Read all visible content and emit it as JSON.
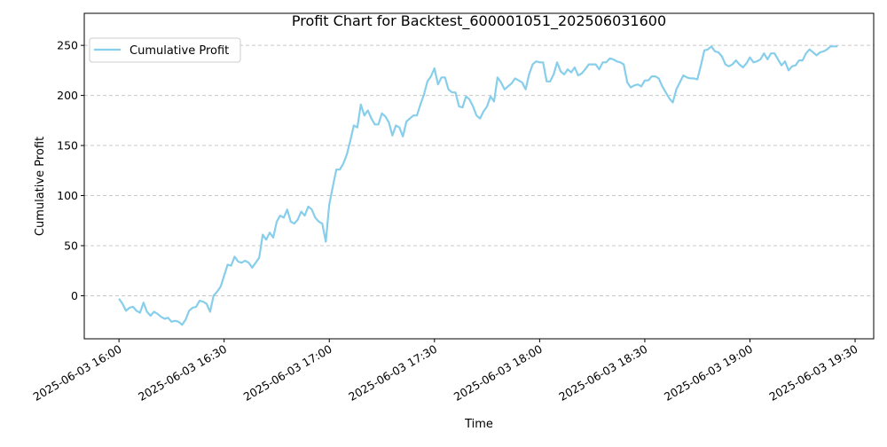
{
  "chart_data": {
    "type": "line",
    "title": "Profit Chart for Backtest_600001051_202506031600",
    "xlabel": "Time",
    "ylabel": "Cumulative Profit",
    "x_start": "2025-06-03 16:00",
    "x_interval_minutes": 1,
    "xlim_minutes": [
      -9.9,
      215.3
    ],
    "ylim": [
      -43,
      282
    ],
    "grid": "y-dashed",
    "legend": {
      "placement": "top-left",
      "entries": [
        "Cumulative Profit"
      ]
    },
    "x_ticks": [
      {
        "minutes": 0,
        "label": "2025-06-03 16:00"
      },
      {
        "minutes": 30,
        "label": "2025-06-03 16:30"
      },
      {
        "minutes": 60,
        "label": "2025-06-03 17:00"
      },
      {
        "minutes": 90,
        "label": "2025-06-03 17:30"
      },
      {
        "minutes": 120,
        "label": "2025-06-03 18:00"
      },
      {
        "minutes": 150,
        "label": "2025-06-03 18:30"
      },
      {
        "minutes": 180,
        "label": "2025-06-03 19:00"
      },
      {
        "minutes": 210,
        "label": "2025-06-03 19:30"
      }
    ],
    "y_ticks": [
      0,
      50,
      100,
      150,
      200,
      250
    ],
    "series": [
      {
        "name": "Cumulative Profit",
        "color": "#87ceeb",
        "values": [
          -3,
          -8,
          -15,
          -12,
          -11,
          -15,
          -17,
          -7,
          -16,
          -20,
          -16,
          -18,
          -21,
          -23,
          -22,
          -26,
          -25,
          -26,
          -29,
          -24,
          -15,
          -12,
          -11,
          -5,
          -6,
          -8,
          -16,
          0,
          4,
          9,
          20,
          31,
          30,
          39,
          34,
          33,
          35,
          33,
          28,
          33,
          38,
          61,
          56,
          63,
          58,
          74,
          80,
          78,
          86,
          74,
          72,
          76,
          84,
          80,
          89,
          86,
          78,
          74,
          72,
          54,
          91,
          109,
          126,
          126,
          132,
          141,
          155,
          170,
          168,
          191,
          180,
          185,
          177,
          171,
          171,
          182,
          179,
          173,
          160,
          170,
          168,
          159,
          174,
          177,
          180,
          180,
          191,
          201,
          214,
          219,
          227,
          211,
          218,
          218,
          206,
          203,
          203,
          189,
          188,
          199,
          196,
          189,
          180,
          177,
          184,
          189,
          199,
          194,
          218,
          213,
          206,
          209,
          212,
          217,
          215,
          213,
          206,
          221,
          231,
          234,
          233,
          233,
          214,
          214,
          221,
          233,
          224,
          221,
          226,
          223,
          228,
          220,
          222,
          226,
          231,
          231,
          231,
          226,
          233,
          233,
          237,
          236,
          234,
          233,
          231,
          213,
          208,
          210,
          211,
          209,
          215,
          215,
          219,
          219,
          217,
          209,
          203,
          197,
          193,
          206,
          213,
          220,
          218,
          217,
          217,
          216,
          230,
          245,
          246,
          249,
          244,
          243,
          239,
          231,
          229,
          231,
          235,
          231,
          228,
          232,
          238,
          233,
          234,
          236,
          242,
          236,
          242,
          242,
          236,
          230,
          234,
          225,
          229,
          230,
          235,
          235,
          242,
          246,
          243,
          240,
          243,
          244,
          246,
          249,
          249,
          249
        ]
      }
    ]
  }
}
